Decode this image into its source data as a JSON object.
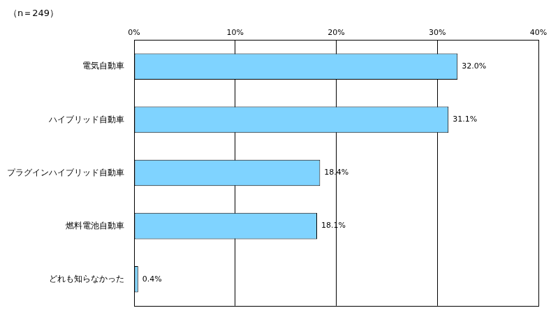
{
  "chart_data": {
    "type": "bar",
    "orientation": "horizontal",
    "subtitle": "（n＝249）",
    "categories": [
      "電気自動車",
      "ハイブリッド自動車",
      "プラグインハイブリッド自動車",
      "燃料電池自動車",
      "どれも知らなかった"
    ],
    "values": [
      32.0,
      31.1,
      18.4,
      18.1,
      0.4
    ],
    "value_labels": [
      "32.0%",
      "31.1%",
      "18.4%",
      "18.1%",
      "0.4%"
    ],
    "data_labels": true,
    "color": "#7fd3ff",
    "xlim": [
      0,
      40
    ],
    "xticks": [
      {
        "value": 0,
        "label": "0%"
      },
      {
        "value": 10,
        "label": "10%"
      },
      {
        "value": 20,
        "label": "20%"
      },
      {
        "value": 30,
        "label": "30%"
      },
      {
        "value": 40,
        "label": "40%"
      }
    ],
    "grid": true
  }
}
